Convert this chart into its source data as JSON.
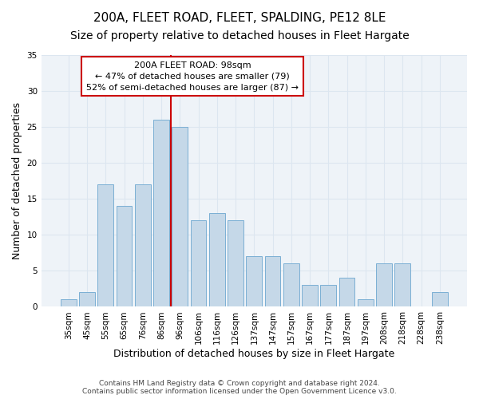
{
  "title": "200A, FLEET ROAD, FLEET, SPALDING, PE12 8LE",
  "subtitle": "Size of property relative to detached houses in Fleet Hargate",
  "xlabel": "Distribution of detached houses by size in Fleet Hargate",
  "ylabel": "Number of detached properties",
  "categories": [
    "35sqm",
    "45sqm",
    "55sqm",
    "65sqm",
    "76sqm",
    "86sqm",
    "96sqm",
    "106sqm",
    "116sqm",
    "126sqm",
    "137sqm",
    "147sqm",
    "157sqm",
    "167sqm",
    "177sqm",
    "187sqm",
    "197sqm",
    "208sqm",
    "218sqm",
    "228sqm",
    "238sqm"
  ],
  "values": [
    1,
    2,
    17,
    14,
    17,
    26,
    25,
    12,
    13,
    12,
    7,
    7,
    6,
    3,
    3,
    4,
    1,
    6,
    6,
    0,
    2
  ],
  "bar_color": "#c5d8e8",
  "bar_edge_color": "#7bafd4",
  "ref_line_color": "#cc0000",
  "annotation_text": "200A FLEET ROAD: 98sqm\n← 47% of detached houses are smaller (79)\n52% of semi-detached houses are larger (87) →",
  "annotation_box_color": "#ffffff",
  "annotation_box_edge_color": "#cc0000",
  "ylim": [
    0,
    35
  ],
  "yticks": [
    0,
    5,
    10,
    15,
    20,
    25,
    30,
    35
  ],
  "grid_color": "#dce6f0",
  "background_color": "#eef3f8",
  "footer_line1": "Contains HM Land Registry data © Crown copyright and database right 2024.",
  "footer_line2": "Contains public sector information licensed under the Open Government Licence v3.0.",
  "title_fontsize": 11,
  "subtitle_fontsize": 10,
  "tick_fontsize": 7.5
}
